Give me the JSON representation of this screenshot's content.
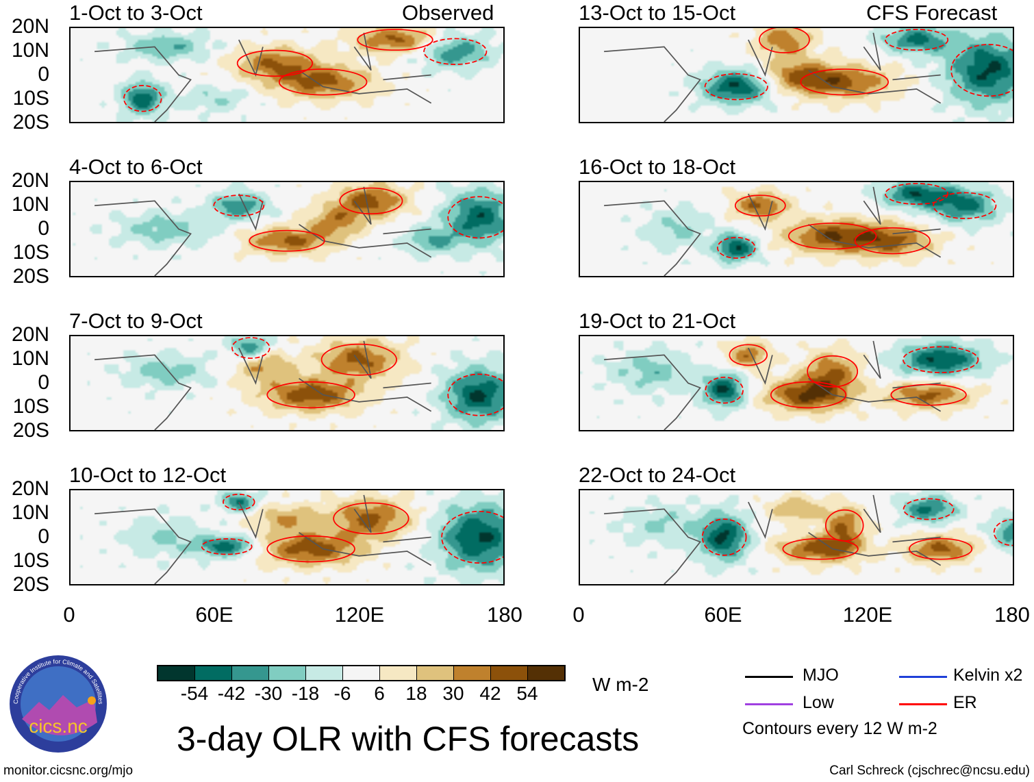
{
  "panels": {
    "observed_header": "Observed",
    "forecast_header": "CFS Forecast",
    "left": [
      {
        "title": "1-Oct to 3-Oct",
        "features": [
          [
            105,
            -3,
            45,
            14,
            5
          ],
          [
            85,
            5,
            40,
            12,
            5
          ],
          [
            135,
            15,
            45,
            12,
            4
          ],
          [
            30,
            -10,
            -50,
            6,
            5
          ],
          [
            160,
            10,
            -40,
            10,
            5
          ],
          [
            40,
            12,
            -30,
            12,
            4
          ],
          [
            60,
            -10,
            -18,
            10,
            4
          ]
        ]
      },
      {
        "title": "4-Oct to 6-Oct",
        "features": [
          [
            90,
            -5,
            45,
            12,
            4
          ],
          [
            125,
            12,
            48,
            10,
            5
          ],
          [
            110,
            3,
            35,
            8,
            5
          ],
          [
            170,
            5,
            -50,
            10,
            8
          ],
          [
            70,
            10,
            -40,
            8,
            4
          ],
          [
            40,
            0,
            -25,
            14,
            5
          ],
          [
            150,
            -5,
            -30,
            8,
            4
          ]
        ]
      },
      {
        "title": "7-Oct to 9-Oct",
        "features": [
          [
            100,
            -5,
            50,
            14,
            5
          ],
          [
            120,
            10,
            45,
            12,
            6
          ],
          [
            80,
            8,
            35,
            8,
            5
          ],
          [
            170,
            -5,
            -55,
            10,
            8
          ],
          [
            75,
            15,
            -45,
            6,
            4
          ],
          [
            40,
            5,
            -25,
            12,
            5
          ]
        ]
      },
      {
        "title": "10-Oct to 12-Oct",
        "features": [
          [
            100,
            -5,
            50,
            14,
            5
          ],
          [
            125,
            8,
            45,
            12,
            6
          ],
          [
            90,
            8,
            30,
            10,
            4
          ],
          [
            170,
            0,
            -55,
            12,
            10
          ],
          [
            65,
            -4,
            -50,
            8,
            3
          ],
          [
            70,
            15,
            -45,
            5,
            3
          ],
          [
            40,
            0,
            -20,
            12,
            6
          ]
        ]
      }
    ],
    "right": [
      {
        "title": "13-Oct to 15-Oct",
        "features": [
          [
            110,
            -3,
            45,
            14,
            5
          ],
          [
            90,
            0,
            35,
            10,
            5
          ],
          [
            85,
            15,
            40,
            8,
            5
          ],
          [
            65,
            -5,
            -55,
            10,
            5
          ],
          [
            170,
            2,
            -55,
            12,
            10
          ],
          [
            140,
            15,
            -45,
            10,
            4
          ]
        ]
      },
      {
        "title": "16-Oct to 18-Oct",
        "features": [
          [
            105,
            -3,
            50,
            14,
            5
          ],
          [
            75,
            10,
            45,
            8,
            4
          ],
          [
            130,
            -5,
            40,
            12,
            5
          ],
          [
            65,
            -8,
            -55,
            6,
            4
          ],
          [
            140,
            15,
            -50,
            10,
            4
          ],
          [
            160,
            10,
            -45,
            10,
            5
          ],
          [
            40,
            0,
            -20,
            10,
            6
          ]
        ]
      },
      {
        "title": "19-Oct to 21-Oct",
        "features": [
          [
            95,
            -5,
            55,
            12,
            5
          ],
          [
            105,
            5,
            40,
            8,
            6
          ],
          [
            145,
            -5,
            45,
            12,
            4
          ],
          [
            70,
            12,
            40,
            6,
            4
          ],
          [
            60,
            -3,
            -55,
            6,
            5
          ],
          [
            150,
            10,
            -55,
            12,
            5
          ],
          [
            30,
            5,
            -25,
            12,
            6
          ]
        ]
      },
      {
        "title": "22-Oct to 24-Oct",
        "features": [
          [
            100,
            -5,
            50,
            12,
            4
          ],
          [
            110,
            5,
            40,
            6,
            6
          ],
          [
            150,
            -5,
            45,
            10,
            4
          ],
          [
            90,
            12,
            30,
            8,
            4
          ],
          [
            60,
            0,
            -55,
            7,
            7
          ],
          [
            145,
            12,
            -45,
            8,
            4
          ],
          [
            180,
            2,
            -40,
            6,
            5
          ],
          [
            35,
            5,
            -20,
            12,
            6
          ]
        ]
      }
    ],
    "lat_labels": [
      "20N",
      "10N",
      "0",
      "10S",
      "20S"
    ],
    "lon_labels": [
      "0",
      "60E",
      "120E",
      "180"
    ]
  },
  "colorbar": {
    "colors": [
      "#01362e",
      "#016c62",
      "#35978f",
      "#80cdc1",
      "#c7eae5",
      "#f5f5f5",
      "#f6e8c3",
      "#dfc27d",
      "#bf812d",
      "#8c510a",
      "#543005"
    ],
    "labels": [
      "-54",
      "-42",
      "-30",
      "-18",
      "-6",
      "6",
      "18",
      "30",
      "42",
      "54"
    ],
    "units": "W m-2"
  },
  "title": "3-day OLR with CFS forecasts",
  "legend": {
    "items": [
      {
        "label": "MJO",
        "color": "#000000"
      },
      {
        "label": "Kelvin x2",
        "color": "#1f3fd8"
      },
      {
        "label": "Low",
        "color": "#a040e0"
      },
      {
        "label": "ER",
        "color": "#ff0000"
      }
    ],
    "note": "Contours every 12 W m-2"
  },
  "logo": {
    "text": "cics.nc",
    "ring_text": "Cooperative Institute for Climate and Satellites"
  },
  "footer": {
    "url": "monitor.cicsnc.org/mjo",
    "credit": "Carl Schreck (cjschrec@ncsu.edu)"
  }
}
